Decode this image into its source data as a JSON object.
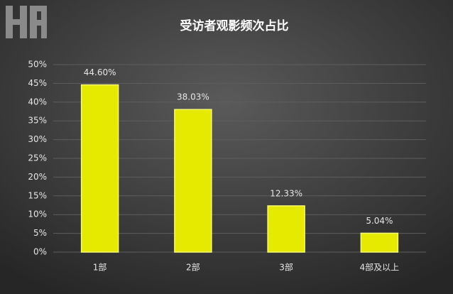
{
  "chart_data": {
    "type": "bar",
    "title": "受访者观影频次占比",
    "categories": [
      "1部",
      "2部",
      "3部",
      "4部及以上"
    ],
    "values": [
      44.6,
      38.03,
      12.33,
      5.04
    ],
    "value_labels": [
      "44.60%",
      "38.03%",
      "12.33%",
      "5.04%"
    ],
    "color": "#e6ea00",
    "ylim": [
      0,
      50
    ],
    "yticks": [
      {
        "value": 0,
        "label": "0%"
      },
      {
        "value": 5,
        "label": "5%"
      },
      {
        "value": 10,
        "label": "10%"
      },
      {
        "value": 15,
        "label": "15%"
      },
      {
        "value": 20,
        "label": "20%"
      },
      {
        "value": 25,
        "label": "25%"
      },
      {
        "value": 30,
        "label": "30%"
      },
      {
        "value": 35,
        "label": "35%"
      },
      {
        "value": 40,
        "label": "40%"
      },
      {
        "value": 45,
        "label": "45%"
      },
      {
        "value": 50,
        "label": "50%"
      }
    ],
    "grid": true
  }
}
